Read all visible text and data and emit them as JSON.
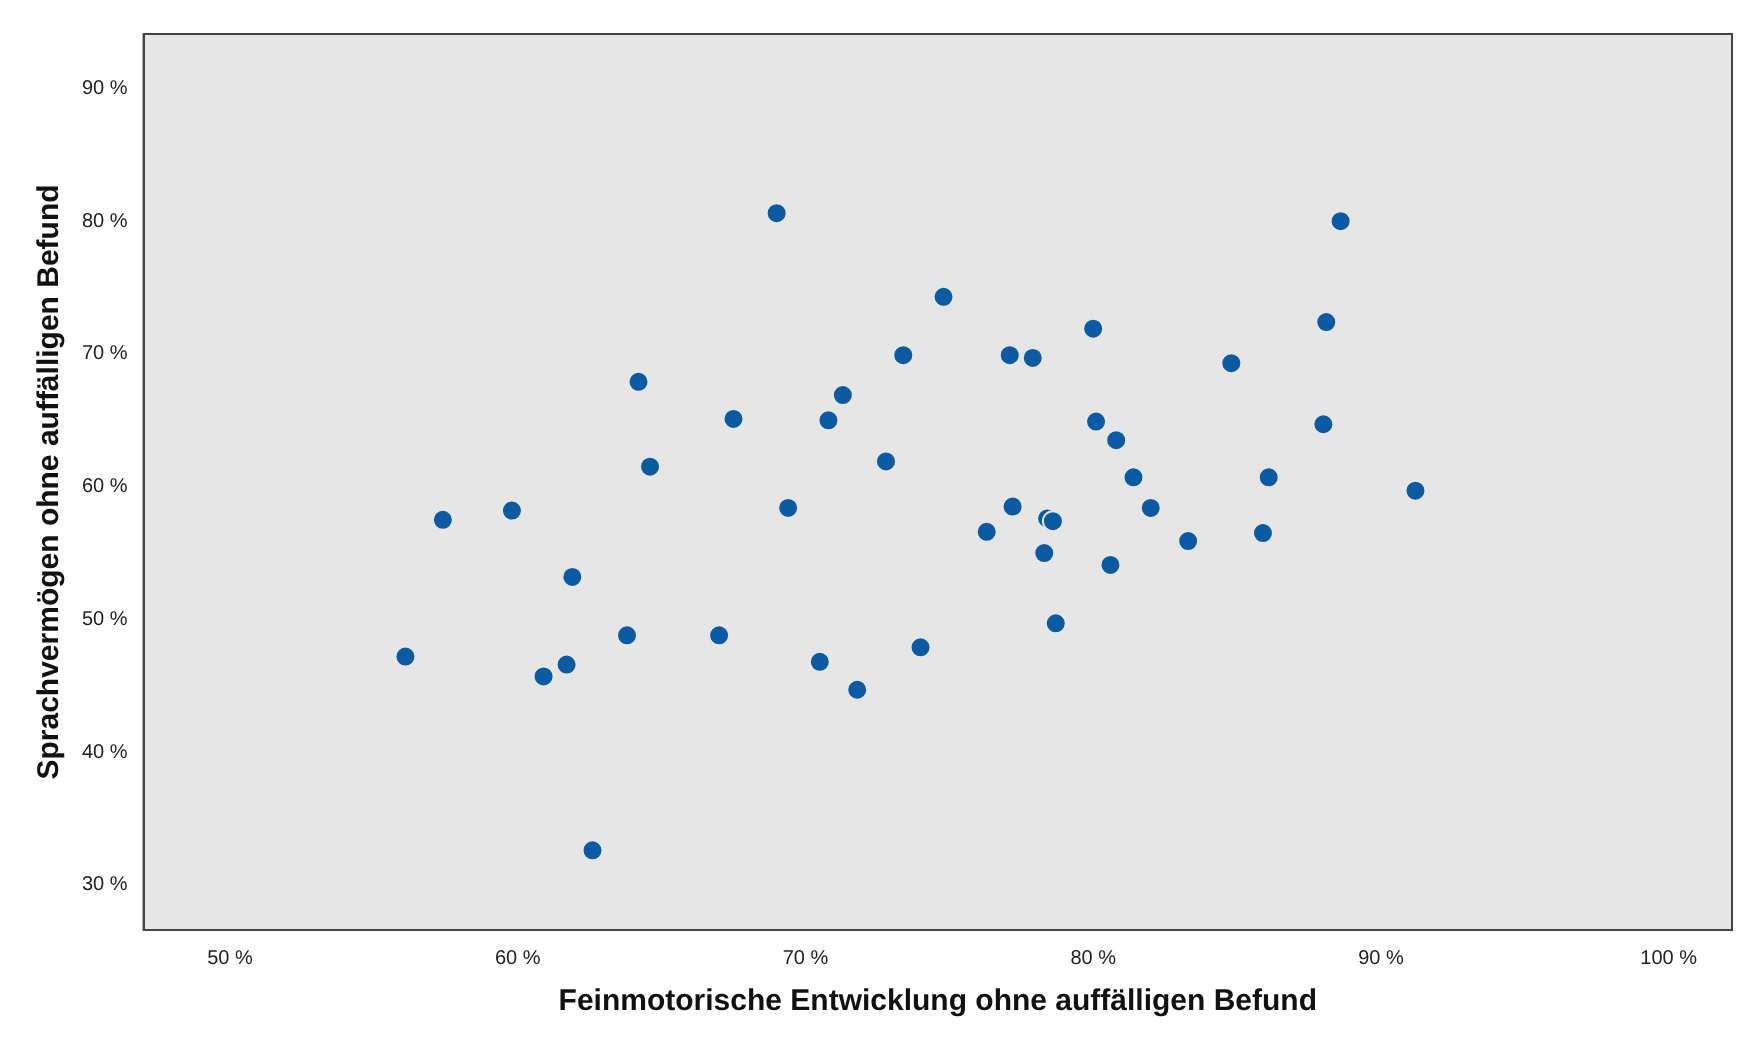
{
  "chart_data": {
    "type": "scatter",
    "xlabel": "Feinmotorische Entwicklung ohne auffälligen Befund",
    "ylabel": "Sprachvermögen ohne auffälligen Befund",
    "x": [
      56.1,
      57.4,
      59.8,
      60.9,
      61.7,
      61.9,
      62.6,
      63.8,
      64.2,
      64.6,
      67.0,
      67.5,
      69.0,
      69.4,
      70.5,
      70.8,
      71.3,
      71.8,
      72.8,
      73.4,
      74.0,
      74.8,
      76.3,
      77.1,
      77.2,
      77.9,
      78.3,
      78.4,
      78.6,
      78.7,
      80.0,
      80.1,
      80.6,
      80.8,
      81.4,
      82.0,
      83.3,
      84.8,
      85.9,
      86.1,
      88.0,
      88.1,
      88.6,
      91.2
    ],
    "series": [
      {
        "color": "#0b5aa2",
        "values": [
          47.2,
          57.5,
          58.2,
          45.7,
          46.6,
          53.2,
          32.6,
          48.8,
          67.9,
          61.5,
          48.8,
          65.1,
          80.6,
          58.4,
          46.8,
          65.0,
          66.9,
          44.7,
          61.9,
          69.9,
          47.9,
          74.3,
          56.6,
          69.9,
          58.5,
          69.7,
          55.0,
          57.6,
          57.4,
          49.7,
          71.9,
          64.9,
          54.1,
          63.5,
          60.7,
          58.4,
          55.9,
          69.3,
          56.5,
          60.7,
          64.7,
          72.4,
          80.0,
          59.7
        ]
      }
    ],
    "xlim": [
      47,
      102.2
    ],
    "ylim": [
      26.6,
      94.1
    ],
    "xticks": [
      {
        "value": 50,
        "label": "50 %"
      },
      {
        "value": 60,
        "label": "60 %"
      },
      {
        "value": 70,
        "label": "70 %"
      },
      {
        "value": 80,
        "label": "80 %"
      },
      {
        "value": 90,
        "label": "90 %"
      },
      {
        "value": 100,
        "label": "100 %"
      }
    ],
    "yticks": [
      {
        "value": 30,
        "label": "30 %"
      },
      {
        "value": 40,
        "label": "40 %"
      },
      {
        "value": 50,
        "label": "50 %"
      },
      {
        "value": 60,
        "label": "60 %"
      },
      {
        "value": 70,
        "label": "70 %"
      },
      {
        "value": 80,
        "label": "80 %"
      },
      {
        "value": 90,
        "label": "90 %"
      }
    ],
    "grid": false,
    "legend": false,
    "marker": "circle"
  }
}
